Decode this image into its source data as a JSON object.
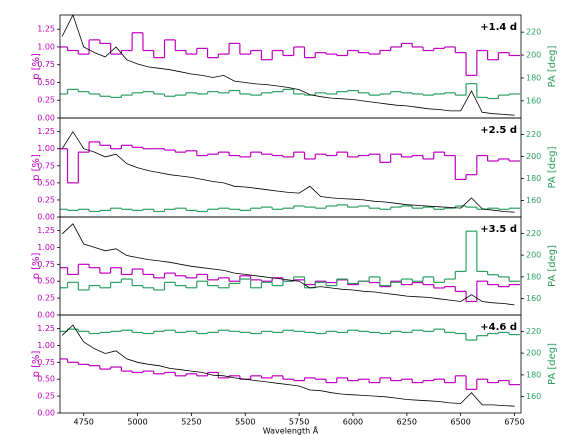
{
  "chart_data": [
    {
      "type": "line",
      "annotation": "+1.4 d",
      "ylabel": "p [%]",
      "y2label": "PA [deg]",
      "xlim": [
        4640,
        6780
      ],
      "ylim": [
        0,
        1.45
      ],
      "y2lim": [
        145,
        235
      ],
      "yticks": [
        {
          "value": 0,
          "label": "0.00"
        },
        {
          "value": 0.25,
          "label": "0.25"
        },
        {
          "value": 0.5,
          "label": "0.50"
        },
        {
          "value": 0.75,
          "label": "0.75"
        },
        {
          "value": 1,
          "label": "1.00"
        },
        {
          "value": 1.25,
          "label": "1.25"
        }
      ],
      "y2ticks": [
        160,
        180,
        200,
        220
      ],
      "x": [
        4650,
        4700,
        4750,
        4800,
        4850,
        4900,
        4950,
        5000,
        5050,
        5100,
        5150,
        5200,
        5250,
        5300,
        5350,
        5400,
        5450,
        5500,
        5550,
        5600,
        5650,
        5700,
        5750,
        5800,
        5850,
        5900,
        5950,
        6000,
        6050,
        6100,
        6150,
        6200,
        6250,
        6300,
        6350,
        6400,
        6450,
        6500,
        6550,
        6600,
        6650,
        6700,
        6750
      ],
      "series": [
        {
          "color": "#c000c0",
          "style": "step",
          "values": [
            1.0,
            0.95,
            0.9,
            1.1,
            1.05,
            0.9,
            0.95,
            1.2,
            0.95,
            0.85,
            1.1,
            0.95,
            0.9,
            0.98,
            0.85,
            0.9,
            1.05,
            0.9,
            0.95,
            0.82,
            0.95,
            0.88,
            1.0,
            0.85,
            0.92,
            0.9,
            0.88,
            0.95,
            0.92,
            0.9,
            0.95,
            1.0,
            1.05,
            1.0,
            0.95,
            0.98,
            1.0,
            0.92,
            0.6,
            0.95,
            0.82,
            0.92,
            0.88
          ]
        },
        {
          "color": "#2ca062",
          "style": "step",
          "axis": "y2",
          "values": [
            166,
            170,
            168,
            166,
            164,
            163,
            165,
            167,
            168,
            166,
            164,
            165,
            167,
            166,
            168,
            167,
            169,
            166,
            165,
            167,
            168,
            170,
            166,
            165,
            167,
            166,
            168,
            169,
            167,
            165,
            166,
            168,
            167,
            166,
            165,
            166,
            167,
            165,
            175,
            163,
            162,
            165,
            166
          ]
        },
        {
          "color": "#000000",
          "style": "line",
          "values": [
            1.15,
            1.45,
            1.0,
            0.92,
            0.86,
            1.0,
            0.82,
            0.76,
            0.72,
            0.7,
            0.68,
            0.65,
            0.62,
            0.6,
            0.57,
            0.6,
            0.52,
            0.5,
            0.48,
            0.47,
            0.45,
            0.43,
            0.4,
            0.33,
            0.3,
            0.28,
            0.27,
            0.26,
            0.24,
            0.22,
            0.2,
            0.18,
            0.17,
            0.15,
            0.13,
            0.12,
            0.1,
            0.1,
            0.38,
            0.08,
            0.06,
            0.05,
            0.04
          ]
        }
      ]
    },
    {
      "type": "line",
      "annotation": "+2.5 d",
      "ylabel": "p [%]",
      "y2label": "PA [deg]",
      "xlim": [
        4640,
        6780
      ],
      "ylim": [
        0,
        1.45
      ],
      "y2lim": [
        145,
        235
      ],
      "yticks": [
        {
          "value": 0,
          "label": "0.00"
        },
        {
          "value": 0.25,
          "label": "0.25"
        },
        {
          "value": 0.5,
          "label": "0.50"
        },
        {
          "value": 0.75,
          "label": "0.75"
        },
        {
          "value": 1,
          "label": "1.00"
        },
        {
          "value": 1.25,
          "label": "1.25"
        }
      ],
      "y2ticks": [
        160,
        180,
        200,
        220
      ],
      "x": [
        4650,
        4700,
        4750,
        4800,
        4850,
        4900,
        4950,
        5000,
        5050,
        5100,
        5150,
        5200,
        5250,
        5300,
        5350,
        5400,
        5450,
        5500,
        5550,
        5600,
        5650,
        5700,
        5750,
        5800,
        5850,
        5900,
        5950,
        6000,
        6050,
        6100,
        6150,
        6200,
        6250,
        6300,
        6350,
        6400,
        6450,
        6500,
        6550,
        6600,
        6650,
        6700,
        6750
      ],
      "series": [
        {
          "color": "#c000c0",
          "style": "step",
          "values": [
            1.0,
            0.5,
            0.95,
            1.1,
            1.05,
            1.0,
            1.05,
            1.02,
            1.0,
            1.0,
            0.98,
            0.95,
            0.97,
            0.9,
            0.92,
            0.95,
            0.9,
            0.88,
            0.95,
            0.92,
            0.9,
            0.88,
            0.95,
            0.85,
            0.92,
            0.9,
            0.95,
            0.88,
            0.9,
            0.92,
            0.8,
            0.92,
            0.88,
            0.9,
            0.85,
            0.95,
            0.9,
            0.55,
            0.62,
            0.9,
            0.82,
            0.85,
            0.82
          ]
        },
        {
          "color": "#2ca062",
          "style": "step",
          "axis": "y2",
          "values": [
            152,
            151,
            152,
            150,
            151,
            153,
            152,
            151,
            152,
            150,
            152,
            153,
            151,
            150,
            152,
            153,
            152,
            151,
            153,
            154,
            152,
            153,
            155,
            154,
            153,
            155,
            156,
            154,
            155,
            153,
            152,
            154,
            155,
            153,
            154,
            152,
            153,
            155,
            154,
            152,
            153,
            152,
            153
          ]
        },
        {
          "color": "#000000",
          "style": "line",
          "values": [
            1.0,
            1.25,
            1.0,
            0.95,
            0.88,
            0.92,
            0.78,
            0.72,
            0.68,
            0.65,
            0.62,
            0.6,
            0.58,
            0.55,
            0.52,
            0.5,
            0.45,
            0.44,
            0.42,
            0.4,
            0.38,
            0.36,
            0.35,
            0.45,
            0.3,
            0.28,
            0.27,
            0.26,
            0.25,
            0.23,
            0.22,
            0.2,
            0.18,
            0.17,
            0.16,
            0.15,
            0.14,
            0.13,
            0.28,
            0.12,
            0.1,
            0.08,
            0.07
          ]
        }
      ]
    },
    {
      "type": "line",
      "annotation": "+3.5 d",
      "ylabel": "p [%]",
      "y2label": "PA [deg]",
      "xlim": [
        4640,
        6780
      ],
      "ylim": [
        0,
        1.45
      ],
      "y2lim": [
        145,
        235
      ],
      "yticks": [
        {
          "value": 0,
          "label": "0.00"
        },
        {
          "value": 0.25,
          "label": "0.25"
        },
        {
          "value": 0.5,
          "label": "0.50"
        },
        {
          "value": 0.75,
          "label": "0.75"
        },
        {
          "value": 1,
          "label": "1.00"
        },
        {
          "value": 1.25,
          "label": "1.25"
        }
      ],
      "y2ticks": [
        160,
        180,
        200,
        220
      ],
      "x": [
        4650,
        4700,
        4750,
        4800,
        4850,
        4900,
        4950,
        5000,
        5050,
        5100,
        5150,
        5200,
        5250,
        5300,
        5350,
        5400,
        5450,
        5500,
        5550,
        5600,
        5650,
        5700,
        5750,
        5800,
        5850,
        5900,
        5950,
        6000,
        6050,
        6100,
        6150,
        6200,
        6250,
        6300,
        6350,
        6400,
        6450,
        6500,
        6550,
        6600,
        6650,
        6700,
        6750
      ],
      "series": [
        {
          "color": "#c000c0",
          "style": "step",
          "values": [
            0.7,
            0.6,
            0.75,
            0.7,
            0.62,
            0.7,
            0.6,
            0.68,
            0.6,
            0.55,
            0.62,
            0.58,
            0.55,
            0.6,
            0.52,
            0.55,
            0.5,
            0.58,
            0.52,
            0.5,
            0.55,
            0.5,
            0.52,
            0.45,
            0.5,
            0.48,
            0.52,
            0.45,
            0.5,
            0.48,
            0.42,
            0.5,
            0.45,
            0.48,
            0.45,
            0.4,
            0.42,
            0.35,
            0.2,
            0.5,
            0.45,
            0.42,
            0.45
          ]
        },
        {
          "color": "#2ca062",
          "style": "step",
          "axis": "y2",
          "values": [
            170,
            175,
            168,
            172,
            170,
            175,
            178,
            172,
            170,
            168,
            175,
            172,
            170,
            176,
            172,
            170,
            174,
            178,
            170,
            175,
            172,
            176,
            180,
            170,
            175,
            172,
            178,
            174,
            176,
            180,
            172,
            175,
            178,
            176,
            180,
            175,
            178,
            185,
            222,
            185,
            182,
            180,
            176
          ]
        },
        {
          "color": "#000000",
          "style": "line",
          "values": [
            1.2,
            1.35,
            1.05,
            1.0,
            0.95,
            0.98,
            0.88,
            0.85,
            0.82,
            0.8,
            0.78,
            0.75,
            0.72,
            0.7,
            0.68,
            0.66,
            0.62,
            0.6,
            0.58,
            0.56,
            0.54,
            0.52,
            0.5,
            0.4,
            0.42,
            0.4,
            0.38,
            0.37,
            0.35,
            0.34,
            0.32,
            0.3,
            0.28,
            0.27,
            0.26,
            0.24,
            0.22,
            0.2,
            0.3,
            0.2,
            0.18,
            0.17,
            0.15
          ]
        }
      ]
    },
    {
      "type": "line",
      "annotation": "+4.6 d",
      "ylabel": "p [%]",
      "y2label": "PA [deg]",
      "xlabel": "Wavelength Å",
      "xlim": [
        4640,
        6780
      ],
      "ylim": [
        0,
        1.45
      ],
      "y2lim": [
        145,
        235
      ],
      "xticks": [
        4750,
        5000,
        5250,
        5500,
        5750,
        6000,
        6250,
        6500,
        6750
      ],
      "yticks": [
        {
          "value": 0,
          "label": "0.00"
        },
        {
          "value": 0.25,
          "label": "0.25"
        },
        {
          "value": 0.5,
          "label": "0.50"
        },
        {
          "value": 0.75,
          "label": "0.75"
        },
        {
          "value": 1,
          "label": "1.00"
        },
        {
          "value": 1.25,
          "label": "1.25"
        }
      ],
      "y2ticks": [
        160,
        180,
        200,
        220
      ],
      "x": [
        4650,
        4700,
        4750,
        4800,
        4850,
        4900,
        4950,
        5000,
        5050,
        5100,
        5150,
        5200,
        5250,
        5300,
        5350,
        5400,
        5450,
        5500,
        5550,
        5600,
        5650,
        5700,
        5750,
        5800,
        5850,
        5900,
        5950,
        6000,
        6050,
        6100,
        6150,
        6200,
        6250,
        6300,
        6350,
        6400,
        6450,
        6500,
        6550,
        6600,
        6650,
        6700,
        6750
      ],
      "series": [
        {
          "color": "#c000c0",
          "style": "step",
          "values": [
            0.8,
            0.75,
            0.72,
            0.7,
            0.65,
            0.68,
            0.62,
            0.6,
            0.62,
            0.58,
            0.6,
            0.55,
            0.58,
            0.55,
            0.6,
            0.52,
            0.55,
            0.5,
            0.55,
            0.52,
            0.55,
            0.5,
            0.48,
            0.52,
            0.5,
            0.45,
            0.52,
            0.48,
            0.5,
            0.45,
            0.52,
            0.48,
            0.5,
            0.45,
            0.48,
            0.5,
            0.45,
            0.55,
            0.35,
            0.5,
            0.45,
            0.48,
            0.42
          ]
        },
        {
          "color": "#2ca062",
          "style": "step",
          "axis": "y2",
          "values": [
            220,
            222,
            220,
            218,
            219,
            220,
            221,
            219,
            218,
            220,
            221,
            219,
            220,
            218,
            219,
            221,
            220,
            219,
            218,
            220,
            219,
            221,
            220,
            219,
            218,
            220,
            219,
            221,
            220,
            219,
            218,
            220,
            219,
            221,
            220,
            222,
            219,
            218,
            212,
            216,
            218,
            219,
            217
          ]
        },
        {
          "color": "#000000",
          "style": "line",
          "values": [
            1.15,
            1.3,
            1.05,
            0.95,
            0.88,
            0.92,
            0.8,
            0.75,
            0.72,
            0.7,
            0.66,
            0.64,
            0.62,
            0.6,
            0.56,
            0.55,
            0.52,
            0.5,
            0.48,
            0.46,
            0.44,
            0.42,
            0.4,
            0.34,
            0.33,
            0.3,
            0.28,
            0.27,
            0.26,
            0.25,
            0.24,
            0.22,
            0.2,
            0.19,
            0.18,
            0.17,
            0.15,
            0.14,
            0.3,
            0.12,
            0.12,
            0.11,
            0.1
          ]
        }
      ]
    }
  ]
}
